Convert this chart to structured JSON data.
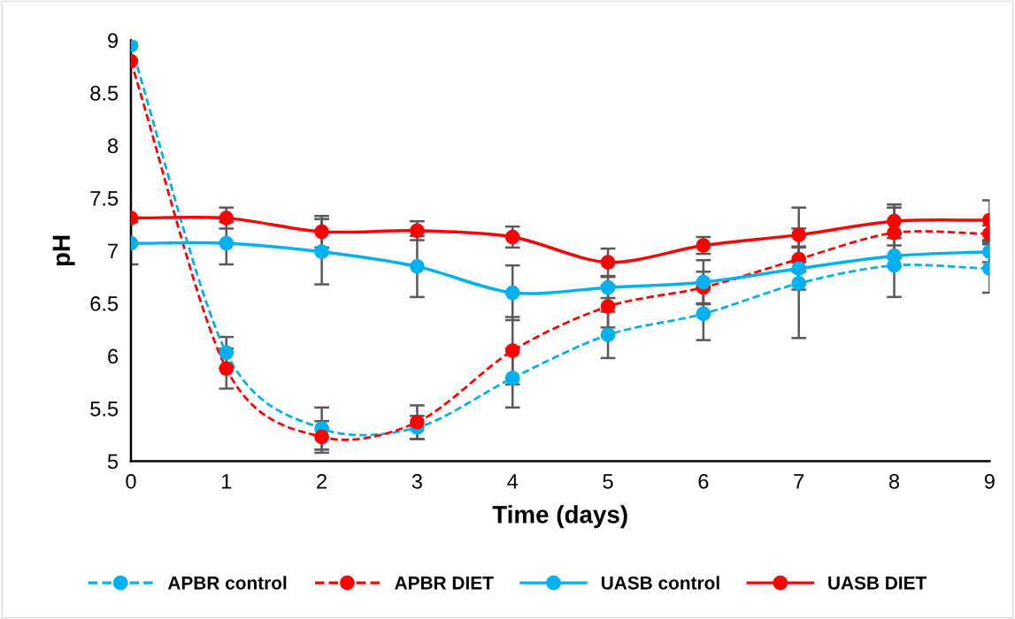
{
  "chart_data": {
    "type": "line",
    "xlabel": "Time (days)",
    "ylabel": "pH",
    "x": [
      0,
      1,
      2,
      3,
      4,
      5,
      6,
      7,
      8,
      9
    ],
    "xlim": [
      0,
      9
    ],
    "xticks": [
      0,
      1,
      2,
      3,
      4,
      5,
      6,
      7,
      8,
      9
    ],
    "ylim": [
      5,
      9
    ],
    "yticks": [
      5,
      5.5,
      6,
      6.5,
      7,
      7.5,
      8,
      8.5,
      9
    ],
    "grid": false,
    "legend": "bottom",
    "marker": "circle",
    "series": [
      {
        "name": "APBR control",
        "color": "#00b0f0",
        "line_style": "dashed",
        "values": [
          8.95,
          6.03,
          5.31,
          5.32,
          5.79,
          6.2,
          6.4,
          6.69,
          6.86,
          6.83
        ],
        "errors": [
          null,
          0.15,
          0.2,
          0.11,
          0.28,
          0.22,
          0.25,
          0.52,
          0.3,
          0.23
        ]
      },
      {
        "name": "APBR DIET",
        "color": "#ff0000",
        "line_style": "dashed",
        "values": [
          8.8,
          5.88,
          5.23,
          5.37,
          6.05,
          6.47,
          6.65,
          6.92,
          7.17,
          7.16
        ],
        "errors": [
          null,
          0.19,
          0.15,
          0.16,
          0.32,
          0.2,
          0.15,
          0.12,
          0.24,
          0.08
        ]
      },
      {
        "name": "UASB control",
        "color": "#00b0f0",
        "line_style": "solid",
        "values": [
          7.07,
          7.07,
          6.99,
          6.85,
          6.6,
          6.65,
          6.7,
          6.83,
          6.95,
          6.99
        ],
        "errors": [
          0.2,
          0.2,
          0.31,
          0.29,
          0.26,
          0.1,
          0.21,
          0.2,
          0.1,
          0.1
        ]
      },
      {
        "name": "UASB DIET",
        "color": "#ff0000",
        "line_style": "solid",
        "values": [
          7.31,
          7.31,
          7.18,
          7.19,
          7.13,
          6.89,
          7.05,
          7.15,
          7.28,
          7.29
        ],
        "errors": [
          null,
          0.1,
          0.15,
          0.09,
          0.1,
          0.13,
          0.08,
          0.26,
          0.16,
          0.19
        ]
      }
    ]
  }
}
